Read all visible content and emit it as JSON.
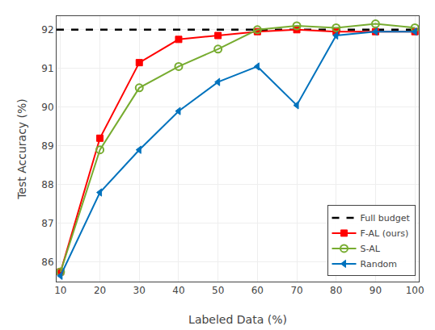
{
  "chart_data": {
    "type": "line",
    "xlabel": "Labeled Data (%)",
    "ylabel": "Test Accuracy (%)",
    "x": [
      10,
      20,
      30,
      40,
      50,
      60,
      70,
      80,
      90,
      100
    ],
    "series": [
      {
        "name": "Full budget",
        "type": "hline",
        "y": 92.0,
        "color": "#000000",
        "line_style": "dashed"
      },
      {
        "name": "F-AL (ours)",
        "color": "#FF0000",
        "marker": "square",
        "values": [
          85.75,
          89.2,
          91.15,
          91.75,
          91.85,
          91.95,
          92.0,
          91.95,
          91.95,
          91.95
        ]
      },
      {
        "name": "S-AL",
        "color": "#77AC30",
        "marker": "circle-open",
        "values": [
          85.75,
          88.9,
          90.5,
          91.05,
          91.5,
          92.0,
          92.1,
          92.05,
          92.15,
          92.05
        ]
      },
      {
        "name": "Random",
        "color": "#0072BD",
        "marker": "triangle-left",
        "values": [
          85.65,
          87.8,
          88.9,
          89.9,
          90.65,
          91.05,
          90.05,
          91.85,
          91.95,
          91.95
        ]
      }
    ],
    "xlim": [
      9,
      101
    ],
    "xticks": [
      10,
      20,
      30,
      40,
      50,
      60,
      70,
      80,
      90,
      100
    ],
    "ylim": [
      85.5,
      92.35
    ],
    "yticks": [
      86,
      87,
      88,
      89,
      90,
      91,
      92
    ],
    "grid": true,
    "legend": "lower right"
  }
}
